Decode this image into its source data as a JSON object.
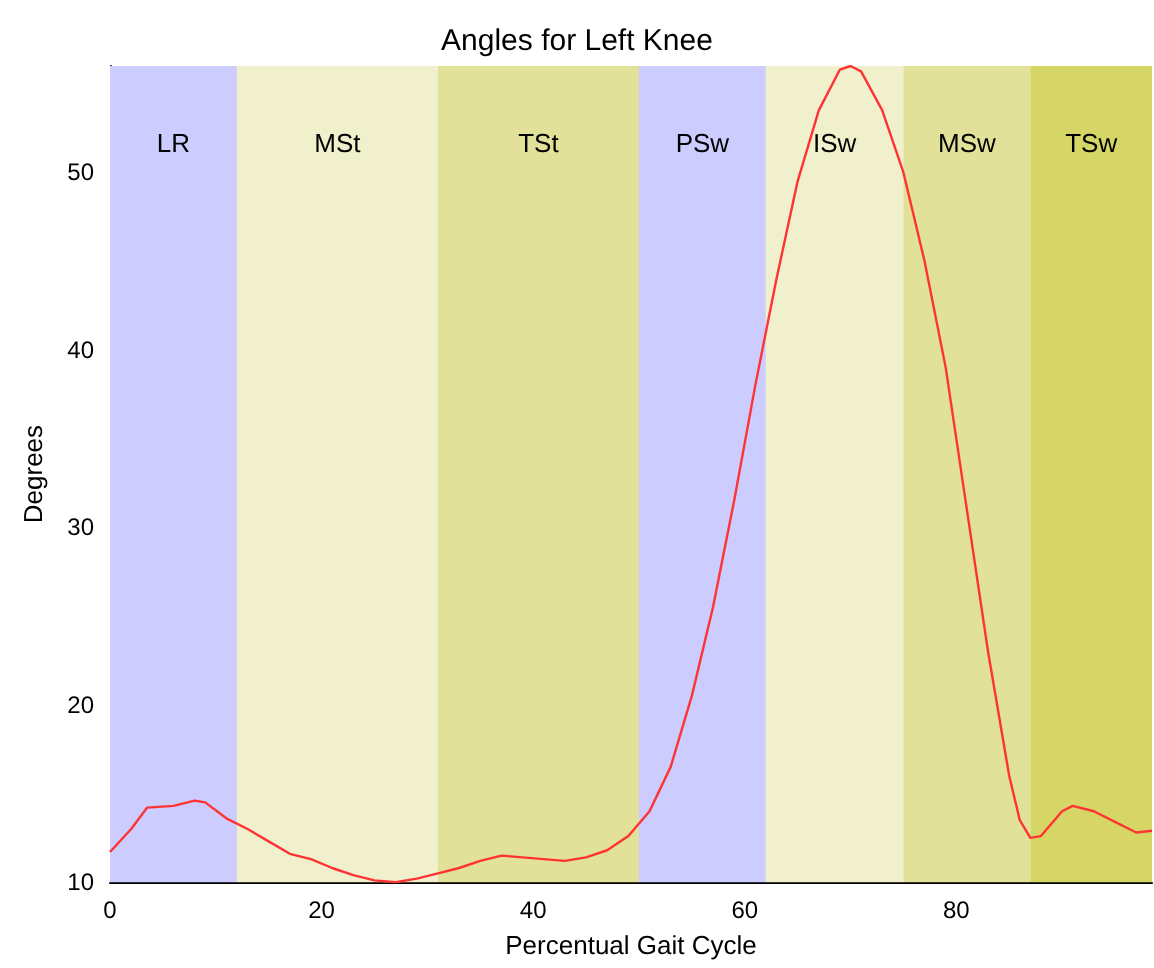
{
  "chart_data": {
    "type": "line",
    "title": "Angles for Left Knee",
    "xlabel": "Percentual Gait Cycle",
    "ylabel": "Degrees",
    "xlim": [
      0,
      98.5
    ],
    "xticks": [
      0,
      20,
      40,
      60,
      80
    ],
    "ylim": [
      10,
      56
    ],
    "yticks": [
      10,
      20,
      30,
      40,
      50
    ],
    "grid": false,
    "marker": "none",
    "line_style": "solid",
    "bands": [
      {
        "axis": "x",
        "from": 0,
        "to": 12,
        "label": "LR",
        "color": "#ccccff"
      },
      {
        "axis": "x",
        "from": 12,
        "to": 31,
        "label": "MSt",
        "color": "#f0f0cc"
      },
      {
        "axis": "x",
        "from": 31,
        "to": 50,
        "label": "TSt",
        "color": "#e1e199"
      },
      {
        "axis": "x",
        "from": 50,
        "to": 62,
        "label": "PSw",
        "color": "#ccccff"
      },
      {
        "axis": "x",
        "from": 62,
        "to": 75,
        "label": "ISw",
        "color": "#f0f0cc"
      },
      {
        "axis": "x",
        "from": 75,
        "to": 87,
        "label": "MSw",
        "color": "#e1e199"
      },
      {
        "axis": "x",
        "from": 87,
        "to": 98.5,
        "label": "TSw",
        "color": "#d6d666"
      }
    ],
    "series": [
      {
        "color": "#ff3333",
        "x": [
          0,
          2,
          3.5,
          6,
          8,
          9,
          11,
          13,
          15,
          17,
          19,
          21,
          23,
          25,
          27,
          29,
          31,
          33,
          35,
          37,
          39,
          41,
          43,
          45,
          47,
          49,
          51,
          53,
          55,
          57,
          59,
          61,
          63,
          65,
          67,
          69,
          70,
          71,
          73,
          75,
          77,
          79,
          81,
          83,
          85,
          86,
          87,
          88,
          90,
          91,
          93,
          95,
          97,
          98.5
        ],
        "values": [
          11.7,
          13,
          14.2,
          14.3,
          14.6,
          14.5,
          13.6,
          13,
          12.3,
          11.6,
          11.3,
          10.8,
          10.4,
          10.1,
          10,
          10.2,
          10.5,
          10.8,
          11.2,
          11.5,
          11.4,
          11.3,
          11.2,
          11.4,
          11.8,
          12.6,
          14,
          16.5,
          20.5,
          25.5,
          31.5,
          38,
          44,
          49.5,
          53.5,
          55.8,
          56,
          55.7,
          53.5,
          50,
          45,
          39,
          31,
          23,
          16,
          13.5,
          12.5,
          12.6,
          14,
          14.3,
          14,
          13.4,
          12.8,
          12.9
        ]
      }
    ]
  }
}
